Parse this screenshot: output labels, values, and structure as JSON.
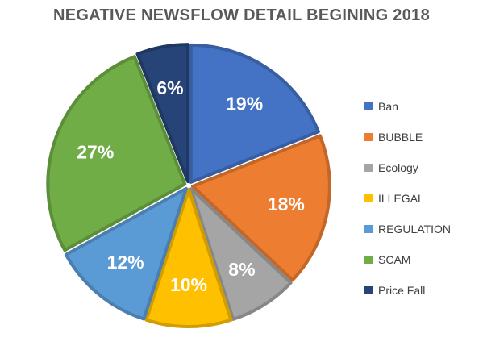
{
  "chart_data": {
    "type": "pie",
    "title": "NEGATIVE NEWSFLOW DETAIL BEGINING 2018",
    "categories": [
      "Ban",
      "BUBBLE",
      "Ecology",
      "ILLEGAL",
      "REGULATION",
      "SCAM",
      "Price Fall"
    ],
    "values": [
      19,
      18,
      8,
      10,
      12,
      27,
      6
    ],
    "data_labels": [
      "19%",
      "18%",
      "8%",
      "10%",
      "12%",
      "27%",
      "6%"
    ],
    "colors": [
      "#4472C4",
      "#ED7D31",
      "#A5A5A5",
      "#FFC000",
      "#5B9BD5",
      "#70AD47",
      "#264478"
    ],
    "legend_position": "right",
    "exploded": true
  }
}
